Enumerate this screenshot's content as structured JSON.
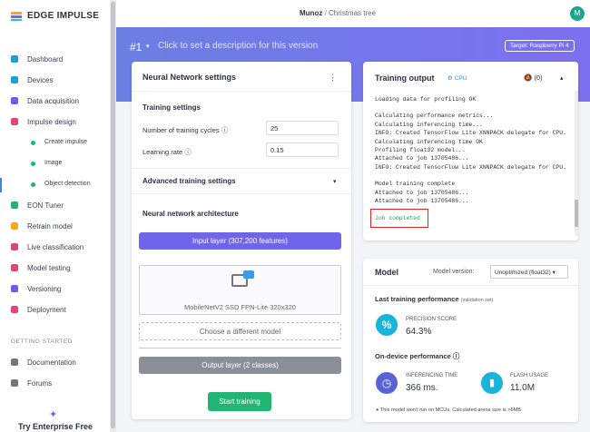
{
  "sidebar": {
    "logo": "EDGE IMPULSE",
    "items": [
      "Dashboard",
      "Devices",
      "Data acquisition",
      "Impulse design",
      "Create impulse",
      "Image",
      "Object detection",
      "EON Tuner",
      "Retrain model",
      "Live classification",
      "Model testing",
      "Versioning",
      "Deployment"
    ],
    "section": "GETTING STARTED",
    "help": [
      "Documentation",
      "Forums"
    ],
    "enterprise": "Try Enterprise Free"
  },
  "topbar": {
    "owner": "Munoz",
    "separator": "/",
    "project": "Christmas tree",
    "avatar": "M"
  },
  "banner": {
    "version": "#1",
    "description": "Click to set a description for this version",
    "target": "Target: Raspberry Pi 4"
  },
  "nn_card": {
    "title": "Neural Network settings",
    "training_settings": "Training settings",
    "fields": [
      {
        "label": "Number of training cycles",
        "value": 25
      },
      {
        "label": "Learning rate",
        "value": 0.15
      }
    ],
    "advanced": "Advanced training settings",
    "architecture": "Neural network architecture",
    "input_layer": "Input layer (307,200 features)",
    "model_name": "MobileNetV2 SSD FPN-Lite 320x320",
    "choose": "Choose a different model",
    "output_layer": "Output layer (2 classes)",
    "button": "Start training"
  },
  "training_output": {
    "title": "Training output",
    "device": "CPU",
    "notifications": "(0)",
    "log": [
      [
        "Loading data for profiling OK"
      ],
      [
        "Calculating performance metrics...",
        "Calculating inferencing time...",
        "INFO: Created TensorFlow Lite XNNPACK delegate for CPU.",
        "Calculating inferencing time OK",
        "Profiling float32 model...",
        "Attached to job 13705486...",
        "INFO: Created TensorFlow Lite XNNPACK delegate for CPU."
      ],
      [
        "Model training complete",
        "Attached to job 13705486...",
        "Attached to job 13705486..."
      ]
    ],
    "status": "Job completed"
  },
  "model_card": {
    "title": "Model",
    "version_label": "Model version:",
    "version": "Unoptimized (float32)",
    "last_performance": "Last training performance",
    "last_performance_note": "(validation set)",
    "precision_label": "PRECISION SCORE",
    "precision_value": "64.3%",
    "on_device": "On-device performance",
    "inferencing_label": "INFERENCING TIME",
    "inferencing_value": "366 ms.",
    "flash_label": "FLASH USAGE",
    "flash_value": "11.0M",
    "note": "This model won't run on MCUs. Calculated arena size is >6MB"
  }
}
